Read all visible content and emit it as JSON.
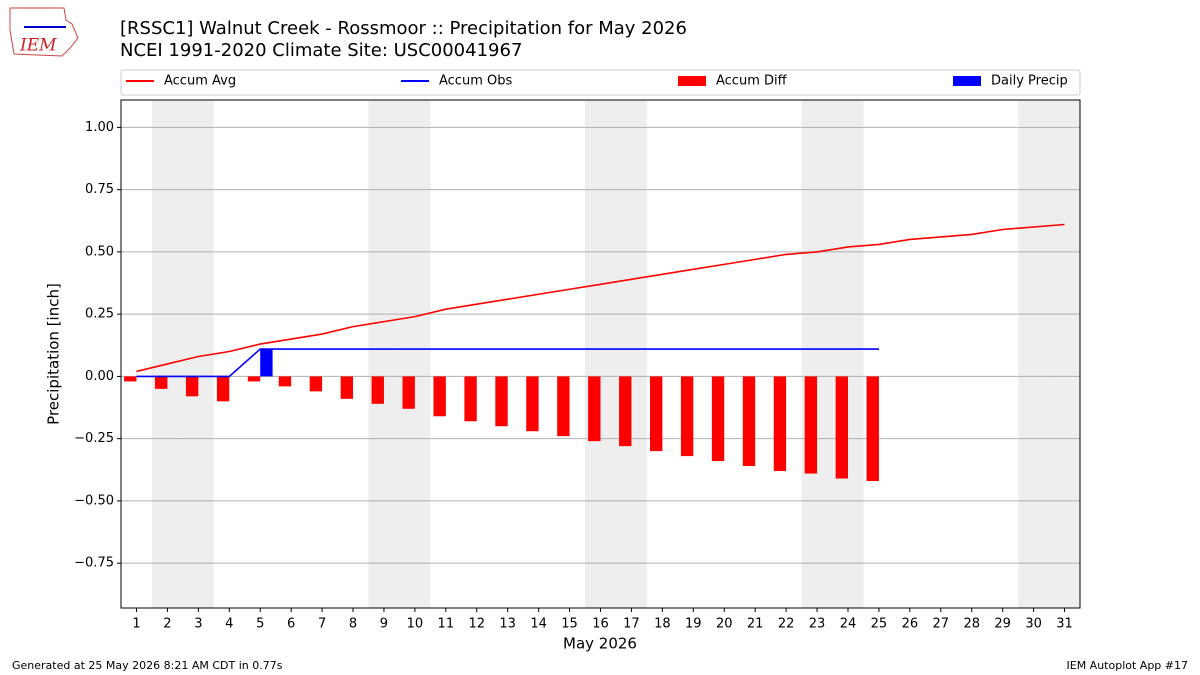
{
  "chart_data": {
    "type": "bar_line",
    "title": "[RSSC1] Walnut Creek - Rossmoor :: Precipitation for May 2026",
    "subtitle": "NCEI 1991-2020 Climate Site: USC00041967",
    "logo_text": "IEM",
    "x_label": "May 2026",
    "y_label": "Precipitation [inch]",
    "footer_left": "Generated at 25 May 2026 8:21 AM CDT in 0.77s",
    "footer_right": "IEM Autoplot App #17",
    "categories": [
      "1",
      "2",
      "3",
      "4",
      "5",
      "6",
      "7",
      "8",
      "9",
      "10",
      "11",
      "12",
      "13",
      "14",
      "15",
      "16",
      "17",
      "18",
      "19",
      "20",
      "21",
      "22",
      "23",
      "24",
      "25",
      "26",
      "27",
      "28",
      "29",
      "30",
      "31"
    ],
    "shaded_categories": [
      "2",
      "3",
      "9",
      "10",
      "16",
      "17",
      "23",
      "24",
      "30",
      "31"
    ],
    "ylim": [
      -0.93,
      1.11
    ],
    "yticks": [
      {
        "value": -0.75,
        "label": "−0.75"
      },
      {
        "value": -0.5,
        "label": "−0.50"
      },
      {
        "value": -0.25,
        "label": "−0.25"
      },
      {
        "value": 0,
        "label": "0.00"
      },
      0.25,
      {
        "value": 0.5,
        "label": "0.50"
      },
      0.75,
      {
        "value": 1,
        "label": "1.00"
      }
    ],
    "grid": true,
    "series": [
      {
        "name": "Accum Avg",
        "kind": "line",
        "color": "#ff0000",
        "values": [
          0.02,
          0.05,
          0.08,
          0.1,
          0.13,
          0.15,
          0.17,
          0.2,
          0.22,
          0.24,
          0.27,
          0.29,
          0.31,
          0.33,
          0.35,
          0.37,
          0.39,
          0.41,
          0.43,
          0.45,
          0.47,
          0.49,
          0.5,
          0.52,
          0.53,
          0.55,
          0.56,
          0.57,
          0.59,
          0.6,
          0.61
        ]
      },
      {
        "name": "Accum Obs",
        "kind": "line",
        "color": "#0000ff",
        "values": [
          0,
          0,
          0,
          0,
          0.11,
          0.11,
          0.11,
          0.11,
          0.11,
          0.11,
          0.11,
          0.11,
          0.11,
          0.11,
          0.11,
          0.11,
          0.11,
          0.11,
          0.11,
          0.11,
          0.11,
          0.11,
          0.11,
          0.11,
          0.11,
          null,
          null,
          null,
          null,
          null,
          null
        ]
      },
      {
        "name": "Accum Diff",
        "kind": "bar",
        "color": "#ff0000",
        "values": [
          -0.02,
          -0.05,
          -0.08,
          -0.1,
          -0.02,
          -0.04,
          -0.06,
          -0.09,
          -0.11,
          -0.13,
          -0.16,
          -0.18,
          -0.2,
          -0.22,
          -0.24,
          -0.26,
          -0.28,
          -0.3,
          -0.32,
          -0.34,
          -0.36,
          -0.38,
          -0.39,
          -0.41,
          -0.42,
          null,
          null,
          null,
          null,
          null,
          null
        ]
      },
      {
        "name": "Daily Precip",
        "kind": "bar",
        "color": "#0000ff",
        "values": [
          0,
          0,
          0,
          0,
          0.11,
          0,
          0,
          0,
          0,
          0,
          0,
          0,
          0,
          0,
          0,
          0,
          0,
          0,
          0,
          0,
          0,
          0,
          0,
          0,
          0,
          null,
          null,
          null,
          null,
          null,
          null
        ]
      }
    ]
  }
}
